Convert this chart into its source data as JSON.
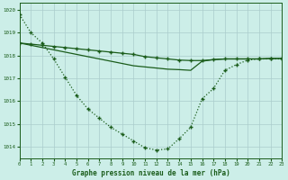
{
  "title": "Graphe pression niveau de la mer (hPa)",
  "bg_color": "#cceee8",
  "line_color": "#1a5c1a",
  "grid_color": "#aacccc",
  "ylim": [
    1013.5,
    1020.3
  ],
  "xlim": [
    0,
    23
  ],
  "yticks": [
    1014,
    1015,
    1016,
    1017,
    1018,
    1019,
    1020
  ],
  "xticks": [
    0,
    1,
    2,
    3,
    4,
    5,
    6,
    7,
    8,
    9,
    10,
    11,
    12,
    13,
    14,
    15,
    16,
    17,
    18,
    19,
    20,
    21,
    22,
    23
  ],
  "line1_deep": [
    1019.8,
    1019.0,
    1018.55,
    1017.85,
    1017.05,
    1016.25,
    1015.65,
    1015.25,
    1014.85,
    1014.55,
    1014.25,
    1013.95,
    1013.85,
    1013.9,
    1014.35,
    1014.85,
    1016.1,
    1016.55,
    1017.35,
    1017.6,
    1017.8,
    1017.85,
    1017.85,
    1017.85
  ],
  "line2_flat": [
    1018.55,
    1018.5,
    1018.45,
    1018.4,
    1018.35,
    1018.3,
    1018.25,
    1018.2,
    1018.15,
    1018.1,
    1018.05,
    1017.95,
    1017.9,
    1017.85,
    1017.8,
    1017.78,
    1017.78,
    1017.82,
    1017.85,
    1017.85,
    1017.85,
    1017.85,
    1017.87,
    1017.87
  ],
  "line3_straight": [
    1018.55,
    1018.45,
    1018.35,
    1018.25,
    1018.15,
    1018.05,
    1017.95,
    1017.85,
    1017.75,
    1017.65,
    1017.55,
    1017.5,
    1017.45,
    1017.4,
    1017.38,
    1017.35,
    1017.75,
    1017.82,
    1017.85,
    1017.85,
    1017.85,
    1017.85,
    1017.87,
    1017.87
  ]
}
